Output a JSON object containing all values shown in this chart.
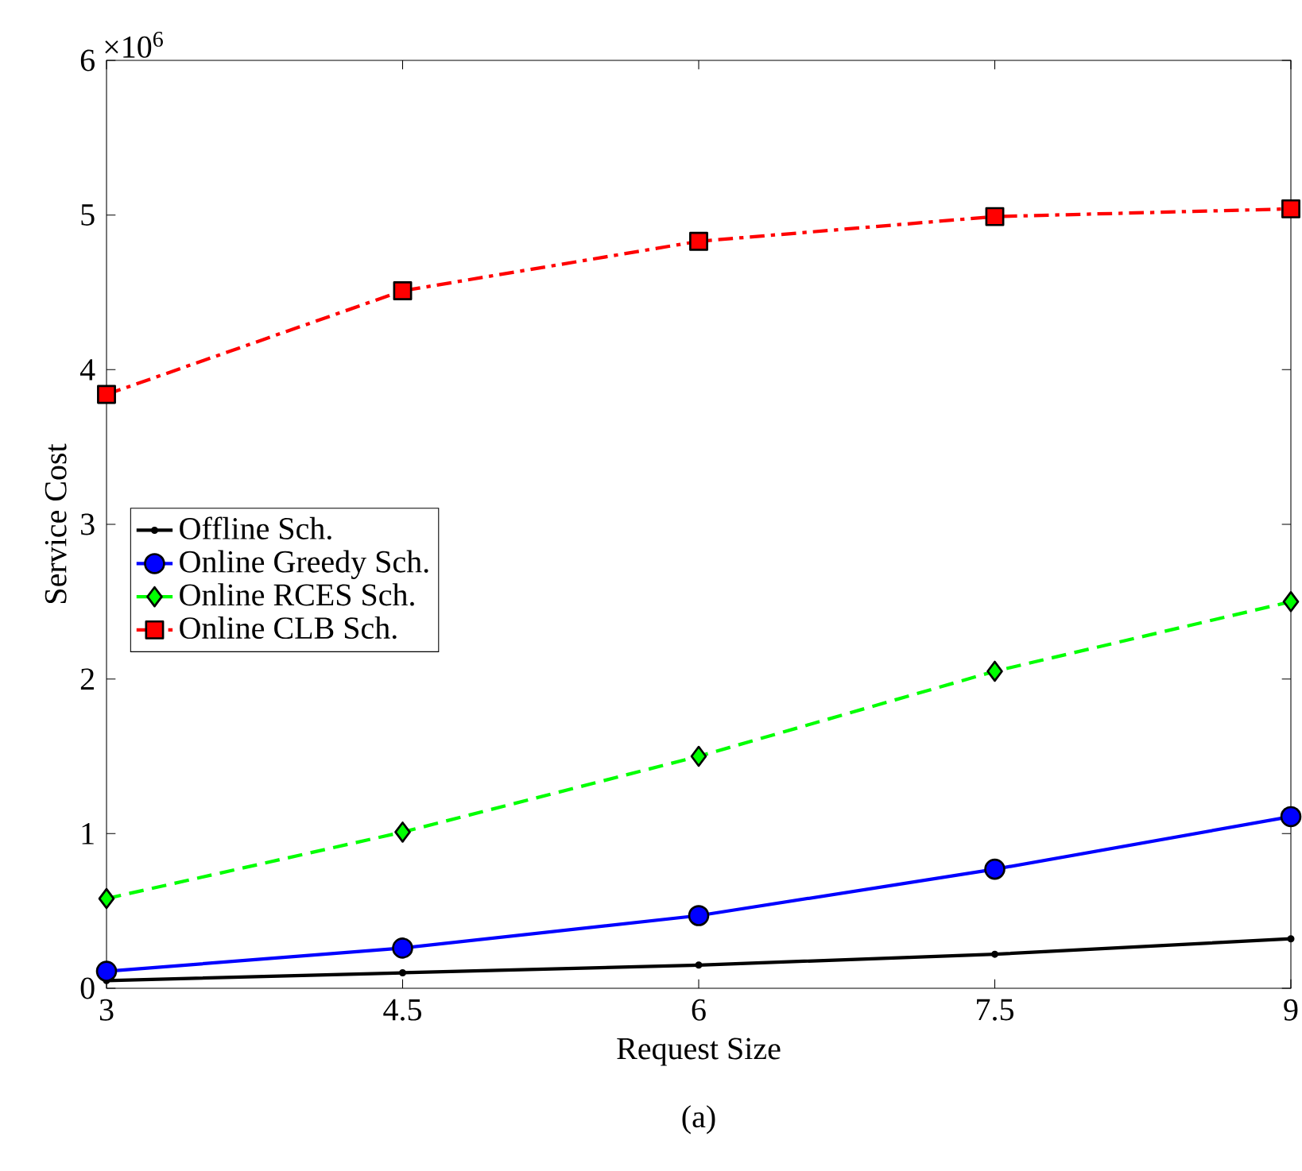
{
  "chart_data": {
    "type": "line",
    "xlabel": "Request Size",
    "ylabel": "Service Cost",
    "annotations": [
      "×10$^{6}$",
      "(a)"
    ],
    "x": [
      3,
      4.5,
      6,
      7.5,
      9
    ],
    "series": [
      {
        "name": "Offline Sch.",
        "color": "#000000",
        "values": [
          0.05,
          0.1,
          0.15,
          0.22,
          0.32
        ],
        "marker": "circle",
        "line_style": "solid"
      },
      {
        "name": "Online Greedy Sch.",
        "color": "#0000ff",
        "values": [
          0.11,
          0.26,
          0.47,
          0.77,
          1.11
        ],
        "marker": "circle",
        "line_style": "solid"
      },
      {
        "name": "Online RCES Sch.",
        "color": "#00ff00",
        "values": [
          0.58,
          1.01,
          1.5,
          2.05,
          2.5
        ],
        "marker": "diamond",
        "line_style": "dashed"
      },
      {
        "name": "Online CLB Sch.",
        "color": "#ff0000",
        "values": [
          3.84,
          4.51,
          4.83,
          4.99,
          5.04
        ],
        "marker": "square",
        "line_style": "dashdot"
      }
    ],
    "xlim": [
      3,
      9
    ],
    "ylim": [
      0,
      6
    ],
    "xticks": [
      3,
      4.5,
      6,
      7.5,
      9
    ],
    "yticks": [
      0,
      1,
      2,
      3,
      4,
      5,
      6
    ],
    "grid": false,
    "legend": "left"
  }
}
